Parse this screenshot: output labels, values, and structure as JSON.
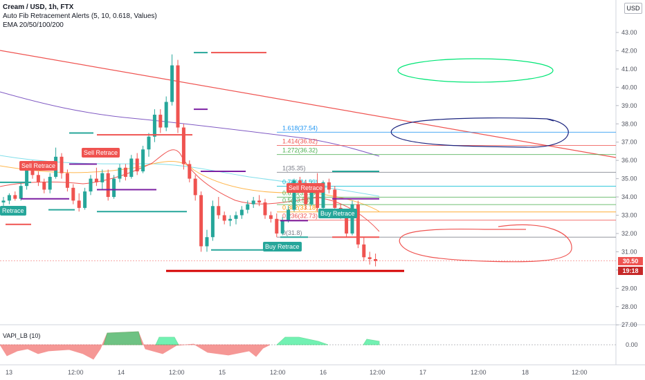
{
  "legend": {
    "symbol": "Cream / USD, 1h, FTX",
    "indicator1": "Auto Fib Retracement Alerts (5, 10, 0.618, Values)",
    "indicator2": "EMA 20/50/100/200"
  },
  "currency_button": "USD",
  "price_axis": {
    "ticks": [
      "43.00",
      "42.00",
      "41.00",
      "40.00",
      "39.00",
      "38.00",
      "37.00",
      "36.00",
      "35.00",
      "34.00",
      "33.00",
      "32.00",
      "31.00",
      "30.00",
      "29.00",
      "28.00",
      "27.00"
    ],
    "current_price": "30.50",
    "countdown": "19:18"
  },
  "time_axis": {
    "labels": [
      "13",
      "12:00",
      "14",
      "12:00",
      "15",
      "12:00",
      "16",
      "12:00",
      "17",
      "12:00",
      "18",
      "12:00"
    ]
  },
  "fib_levels": [
    {
      "label": "1.618(37.54)",
      "price": 37.54,
      "color": "#2196f3"
    },
    {
      "label": "1.414(36.82)",
      "price": 36.82,
      "color": "#ef5350"
    },
    {
      "label": "1.272(36.32)",
      "price": 36.32,
      "color": "#4caf50"
    },
    {
      "label": "1(35.35)",
      "price": 35.35,
      "color": "#787b86"
    },
    {
      "label": "0.786(34.59)",
      "price": 34.59,
      "color": "#00bcd4"
    },
    {
      "label": "0.618(33.99)",
      "price": 33.99,
      "color": "#4caf50"
    },
    {
      "label": "0.5(33.58)",
      "price": 33.58,
      "color": "#4caf50"
    },
    {
      "label": "0.382(33.18)",
      "price": 33.18,
      "color": "#ff9800"
    },
    {
      "label": "0.236(32.73)",
      "price": 32.73,
      "color": "#ef5350"
    },
    {
      "label": "0(31.8)",
      "price": 31.8,
      "color": "#787b86"
    }
  ],
  "signals": {
    "sell1": "Sell Retrace",
    "sell2": "Sell Retrace",
    "sell3": "Sell Retrace",
    "buy1": "Retrace",
    "buy2": "Buy Retrace",
    "buy3": "Buy Retrace"
  },
  "oscillator": {
    "label": "VAPI_LB (10)",
    "tick": "0.00"
  },
  "colors": {
    "up": "#26a69a",
    "down": "#ef5350",
    "trendline": "#ef5350"
  },
  "chart_data": {
    "type": "candlestick",
    "title": "Cream / USD, 1h, FTX",
    "ylim": [
      26.9,
      43.5
    ],
    "y_ticks": [
      27,
      28,
      29,
      30,
      31,
      32,
      33,
      34,
      35,
      36,
      37,
      38,
      39,
      40,
      41,
      42,
      43
    ],
    "x_labels": [
      "13",
      "12:00",
      "14",
      "12:00",
      "15",
      "12:00",
      "16",
      "12:00",
      "17",
      "12:00",
      "18",
      "12:00"
    ],
    "series": [
      {
        "name": "candles",
        "values": [
          [
            33.7,
            34.0,
            33.5,
            33.8
          ],
          [
            33.8,
            34.2,
            33.6,
            34.1
          ],
          [
            34.1,
            34.3,
            33.8,
            33.9
          ],
          [
            33.9,
            34.8,
            33.8,
            34.6
          ],
          [
            34.6,
            35.7,
            34.4,
            35.5
          ],
          [
            35.5,
            36.0,
            35.0,
            35.2
          ],
          [
            35.2,
            35.4,
            34.6,
            34.8
          ],
          [
            34.8,
            35.0,
            34.2,
            34.4
          ],
          [
            34.4,
            35.3,
            34.2,
            35.1
          ],
          [
            35.1,
            36.7,
            35.0,
            36.2
          ],
          [
            36.2,
            36.4,
            35.0,
            35.3
          ],
          [
            35.3,
            35.5,
            34.3,
            34.5
          ],
          [
            34.5,
            34.7,
            33.6,
            33.8
          ],
          [
            33.8,
            34.2,
            33.2,
            33.4
          ],
          [
            33.4,
            34.5,
            33.3,
            34.3
          ],
          [
            34.3,
            35.2,
            34.1,
            35.0
          ],
          [
            35.0,
            35.6,
            34.6,
            34.8
          ],
          [
            34.8,
            35.5,
            34.4,
            35.3
          ],
          [
            35.3,
            35.5,
            33.8,
            34.0
          ],
          [
            34.0,
            35.2,
            33.9,
            35.0
          ],
          [
            35.0,
            35.8,
            34.8,
            35.6
          ],
          [
            35.6,
            35.8,
            34.9,
            35.1
          ],
          [
            35.1,
            36.3,
            35.0,
            36.1
          ],
          [
            36.1,
            36.4,
            35.2,
            35.4
          ],
          [
            35.4,
            36.8,
            35.3,
            36.6
          ],
          [
            36.6,
            37.5,
            36.2,
            37.3
          ],
          [
            37.3,
            38.8,
            37.0,
            38.5
          ],
          [
            38.5,
            38.8,
            37.5,
            37.8
          ],
          [
            37.8,
            39.5,
            37.6,
            39.2
          ],
          [
            39.2,
            41.8,
            39.0,
            41.2
          ],
          [
            41.2,
            41.5,
            37.5,
            37.8
          ],
          [
            37.8,
            38.0,
            35.5,
            35.8
          ],
          [
            35.8,
            36.0,
            34.8,
            35.0
          ],
          [
            35.0,
            35.2,
            33.8,
            34.1
          ],
          [
            34.1,
            34.3,
            31.0,
            31.3
          ],
          [
            31.3,
            32.2,
            31.0,
            31.8
          ],
          [
            31.8,
            33.8,
            31.6,
            33.5
          ],
          [
            33.5,
            34.0,
            32.8,
            33.0
          ],
          [
            33.0,
            33.2,
            32.5,
            32.7
          ],
          [
            32.7,
            33.0,
            32.4,
            32.8
          ],
          [
            32.8,
            33.2,
            32.5,
            33.0
          ],
          [
            33.0,
            33.5,
            32.8,
            33.3
          ],
          [
            33.3,
            33.8,
            33.1,
            33.6
          ],
          [
            33.6,
            34.0,
            33.4,
            33.8
          ],
          [
            33.8,
            34.1,
            33.5,
            33.7
          ],
          [
            33.7,
            33.9,
            32.8,
            33.0
          ],
          [
            33.0,
            33.2,
            32.6,
            32.8
          ],
          [
            32.8,
            33.1,
            31.8,
            32.0
          ],
          [
            32.0,
            32.9,
            31.9,
            32.7
          ],
          [
            32.7,
            33.5,
            32.6,
            33.3
          ],
          [
            33.3,
            35.0,
            33.2,
            34.9
          ],
          [
            34.9,
            35.1,
            34.2,
            34.4
          ],
          [
            34.4,
            34.9,
            33.3,
            33.6
          ],
          [
            33.6,
            34.9,
            33.5,
            34.7
          ],
          [
            34.7,
            35.3,
            33.2,
            33.4
          ],
          [
            33.4,
            34.9,
            33.3,
            34.8
          ],
          [
            34.8,
            35.0,
            34.2,
            34.4
          ],
          [
            34.4,
            34.6,
            33.2,
            33.4
          ],
          [
            33.4,
            33.6,
            32.8,
            33.0
          ],
          [
            33.0,
            33.2,
            31.8,
            32.0
          ],
          [
            32.0,
            33.8,
            31.9,
            33.6
          ],
          [
            33.6,
            33.8,
            31.2,
            31.4
          ],
          [
            31.4,
            31.8,
            30.5,
            30.7
          ],
          [
            30.7,
            31.0,
            30.3,
            30.6
          ],
          [
            30.6,
            30.9,
            30.2,
            30.5
          ]
        ]
      }
    ]
  }
}
